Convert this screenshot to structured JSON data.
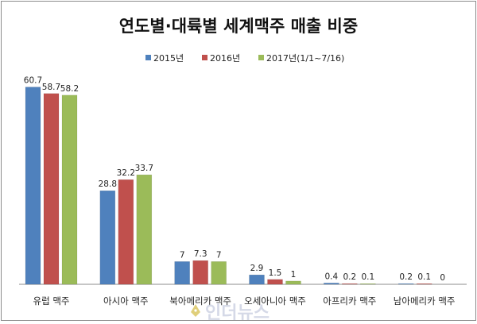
{
  "chart_data": {
    "type": "bar",
    "title": "연도별·대륙별 세계맥주 매출 비중",
    "xlabel": "",
    "ylabel": "",
    "ylim": [
      0,
      65
    ],
    "grid": false,
    "legend_position": "top-right",
    "categories": [
      "유럽 맥주",
      "아시아 맥주",
      "북아메리카 맥주",
      "오세아니아 맥주",
      "아프리카 맥주",
      "남아메리카 맥주"
    ],
    "series": [
      {
        "name": "2015년",
        "color": "#4f81bd",
        "values": [
          60.7,
          28.8,
          7,
          2.9,
          0.4,
          0.2
        ]
      },
      {
        "name": "2016년",
        "color": "#c0504d",
        "values": [
          58.7,
          32.2,
          7.3,
          1.5,
          0.2,
          0.1
        ]
      },
      {
        "name": "2017년(1/1~7/16)",
        "color": "#9bbb59",
        "values": [
          58.2,
          33.7,
          7,
          1,
          0.1,
          0
        ]
      }
    ]
  },
  "watermark": {
    "text": "인더뉴스",
    "icon": "pen-nib-icon"
  }
}
